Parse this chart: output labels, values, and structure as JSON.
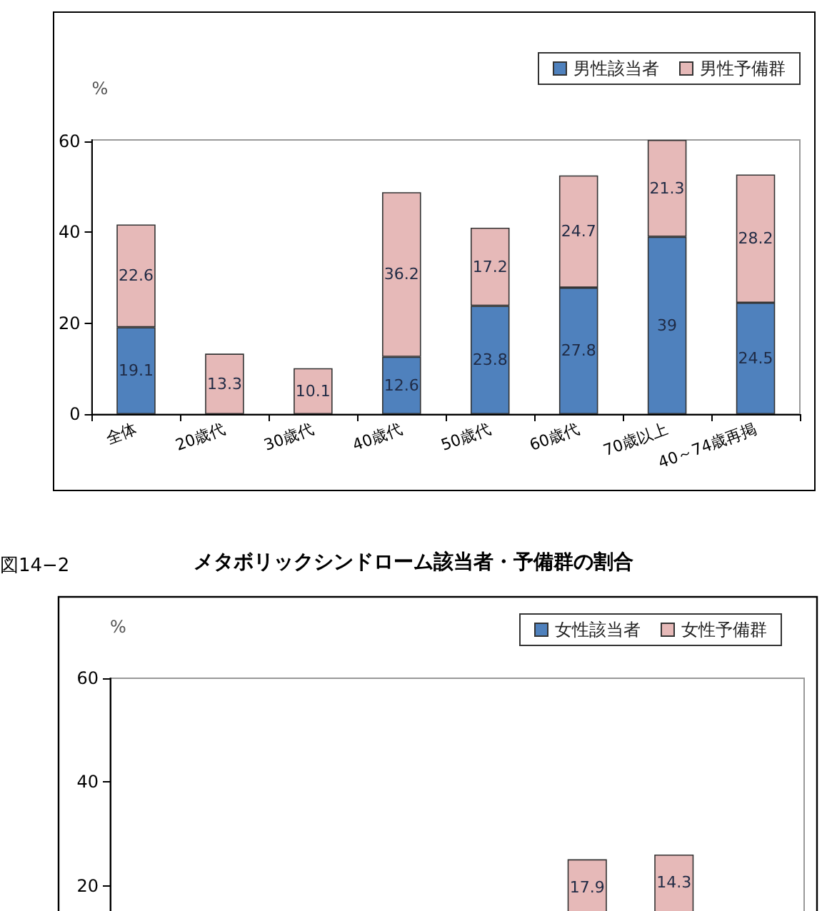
{
  "chart_data": [
    {
      "type": "bar",
      "stacked": true,
      "ylabel": "%",
      "categories": [
        "全体",
        "20歳代",
        "30歳代",
        "40歳代",
        "50歳代",
        "60歳代",
        "70歳以上",
        "40～74歳再掲"
      ],
      "series": [
        {
          "name": "男性該当者",
          "color": "#4f81bd",
          "values": [
            19.1,
            null,
            null,
            12.6,
            23.8,
            27.8,
            39,
            24.5
          ]
        },
        {
          "name": "男性予備群",
          "color": "#e6b9b8",
          "values": [
            22.6,
            13.3,
            10.1,
            36.2,
            17.2,
            24.7,
            21.3,
            28.2
          ]
        }
      ],
      "ylim": [
        0,
        60.3
      ],
      "yticks": [
        0,
        20,
        40,
        60
      ],
      "legend": "top right",
      "data_labels": true
    },
    {
      "type": "bar",
      "title": "メタボリックシンドローム該当者・予備群の割合",
      "annotations": [
        "図14−2"
      ],
      "ylabel": "%",
      "categories": [
        null,
        null,
        null,
        null,
        null,
        null,
        null,
        null
      ],
      "series": [
        {
          "name": "女性該当者",
          "color": "#4f81bd",
          "values": [
            null,
            null,
            null,
            null,
            null,
            null,
            null,
            null
          ]
        },
        {
          "name": "女性予備群",
          "color": "#e6b9b8",
          "base": [
            null,
            null,
            null,
            null,
            null,
            7.1,
            11.6,
            null
          ],
          "values": [
            null,
            null,
            null,
            null,
            null,
            17.9,
            14.3,
            null
          ],
          "value_labels": [
            null,
            null,
            null,
            null,
            null,
            "17.9",
            "14.3",
            null
          ]
        }
      ],
      "ylim": [
        0,
        60
      ],
      "yticks": [
        20,
        40,
        60
      ],
      "legend": "top right"
    }
  ]
}
